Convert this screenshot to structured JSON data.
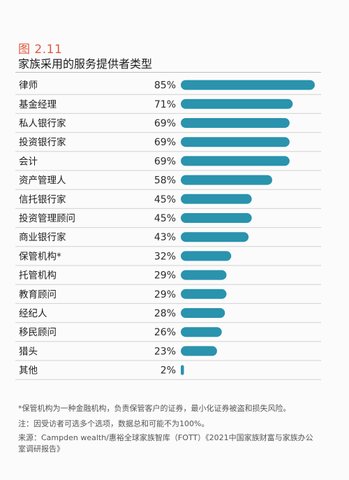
{
  "figure": {
    "number": "图 2.11",
    "title": "家族采用的服务提供者类型"
  },
  "chart_data": {
    "type": "bar",
    "orientation": "horizontal",
    "title": "家族采用的服务提供者类型",
    "categories": [
      "律师",
      "基金经理",
      "私人银行家",
      "投资银行家",
      "会计",
      "资产管理人",
      "信托银行家",
      "投资管理顾问",
      "商业银行家",
      "保管机构*",
      "托管机构",
      "教育顾问",
      "经纪人",
      "移民顾问",
      "猎头",
      "其他"
    ],
    "values": [
      85,
      71,
      69,
      69,
      69,
      58,
      45,
      45,
      43,
      32,
      29,
      29,
      28,
      26,
      23,
      2
    ],
    "value_labels": [
      "85%",
      "71%",
      "69%",
      "69%",
      "69%",
      "58%",
      "45%",
      "45%",
      "43%",
      "32%",
      "29%",
      "29%",
      "28%",
      "26%",
      "23%",
      "2%"
    ],
    "unit": "%",
    "xlim": [
      0,
      85
    ],
    "grid": false,
    "legend": "none",
    "bar_color": "#2a93ad",
    "divider_color": "#d2d2d2"
  },
  "notes": {
    "footnote": "*保管机构为一种金融机构，负责保管客户的证券，最小化证券被盗和损失风险。",
    "note": "注：因受访者可选多个选项，数据总和可能不为100%。",
    "source": "来源：Campden wealth/惠裕全球家族智库（FOTT）《2021中国家族财富与家族办公室调研报告》"
  }
}
